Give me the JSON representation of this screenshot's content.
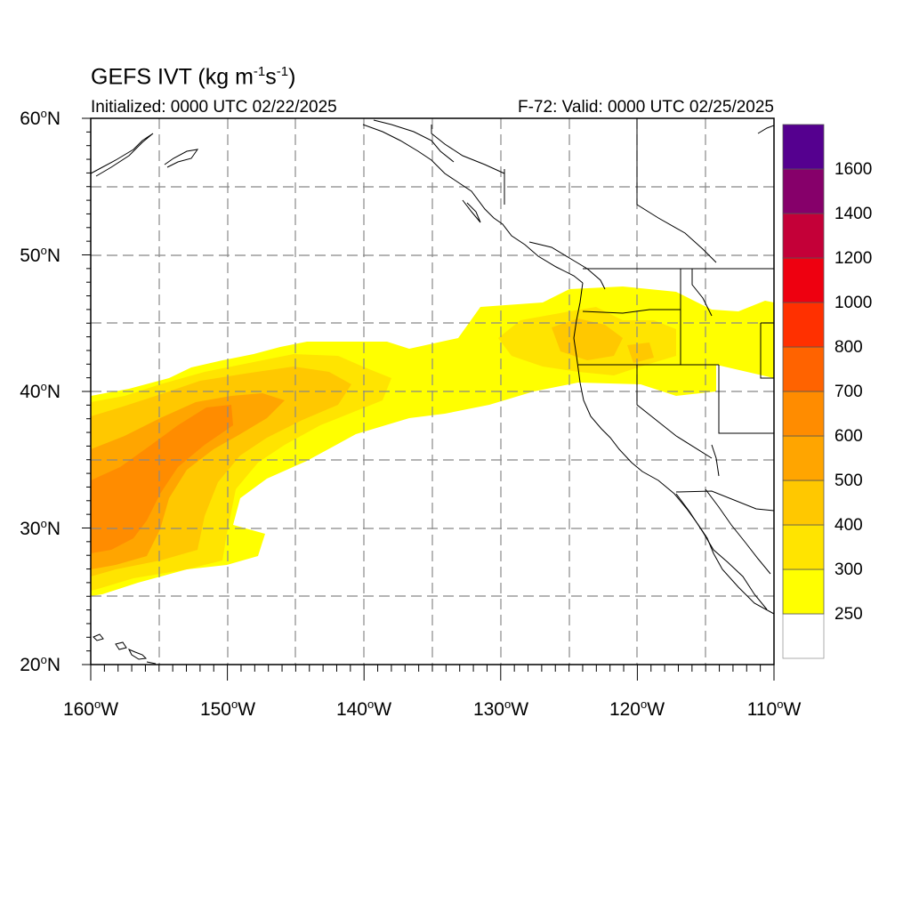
{
  "title": {
    "prefix": "GEFS IVT (kg m",
    "exp1": "-1",
    "mid": "s",
    "exp2": "-1",
    "suffix": ")"
  },
  "subtitle_left": "Initialized: 0000 UTC 02/22/2025",
  "subtitle_right": "F-72: Valid: 0000 UTC 02/25/2025",
  "lat_labels": [
    {
      "num": "60",
      "deg": "o",
      "hem": "N"
    },
    {
      "num": "50",
      "deg": "o",
      "hem": "N"
    },
    {
      "num": "40",
      "deg": "o",
      "hem": "N"
    },
    {
      "num": "30",
      "deg": "o",
      "hem": "N"
    },
    {
      "num": "20",
      "deg": "o",
      "hem": "N"
    }
  ],
  "lon_labels": [
    {
      "num": "160",
      "deg": "o",
      "hem": "W"
    },
    {
      "num": "150",
      "deg": "o",
      "hem": "W"
    },
    {
      "num": "140",
      "deg": "o",
      "hem": "W"
    },
    {
      "num": "130",
      "deg": "o",
      "hem": "W"
    },
    {
      "num": "120",
      "deg": "o",
      "hem": "W"
    },
    {
      "num": "110",
      "deg": "o",
      "hem": "W"
    }
  ],
  "colorbar": {
    "colors": [
      "#ffffff",
      "#ffff00",
      "#ffe400",
      "#ffc800",
      "#ffa500",
      "#ff8c00",
      "#ff6300",
      "#ff3000",
      "#ee0010",
      "#c40038",
      "#86006a",
      "#55008f"
    ],
    "labels": [
      "250",
      "300",
      "400",
      "500",
      "600",
      "700",
      "800",
      "1000",
      "1200",
      "1400",
      "1600"
    ]
  },
  "map": {
    "extent": {
      "lon_min": -160,
      "lon_max": -110,
      "lat_min": 20,
      "lat_max": 60
    },
    "grid_spacing_deg": 5,
    "ivt_colors": {
      "c250": "#ffff00",
      "c300": "#ffe400",
      "c400": "#ffc800",
      "c500": "#ffa500",
      "c600": "#ff8c00"
    }
  }
}
